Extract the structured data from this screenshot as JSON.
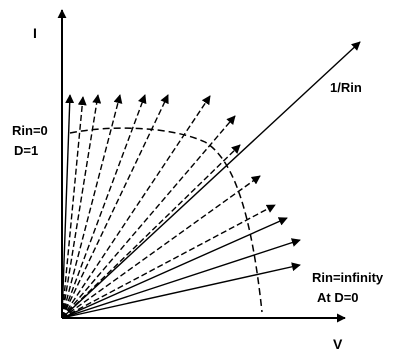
{
  "labels": {
    "y_axis": "I",
    "x_axis": "V",
    "slope": "1/Rin",
    "rin_zero": "Rin=0",
    "duty_one": "D=1",
    "rin_infinity": "Rin=infinity",
    "duty_zero": "At D=0"
  },
  "colors": {
    "stroke": "#000000",
    "background": "#ffffff"
  }
}
